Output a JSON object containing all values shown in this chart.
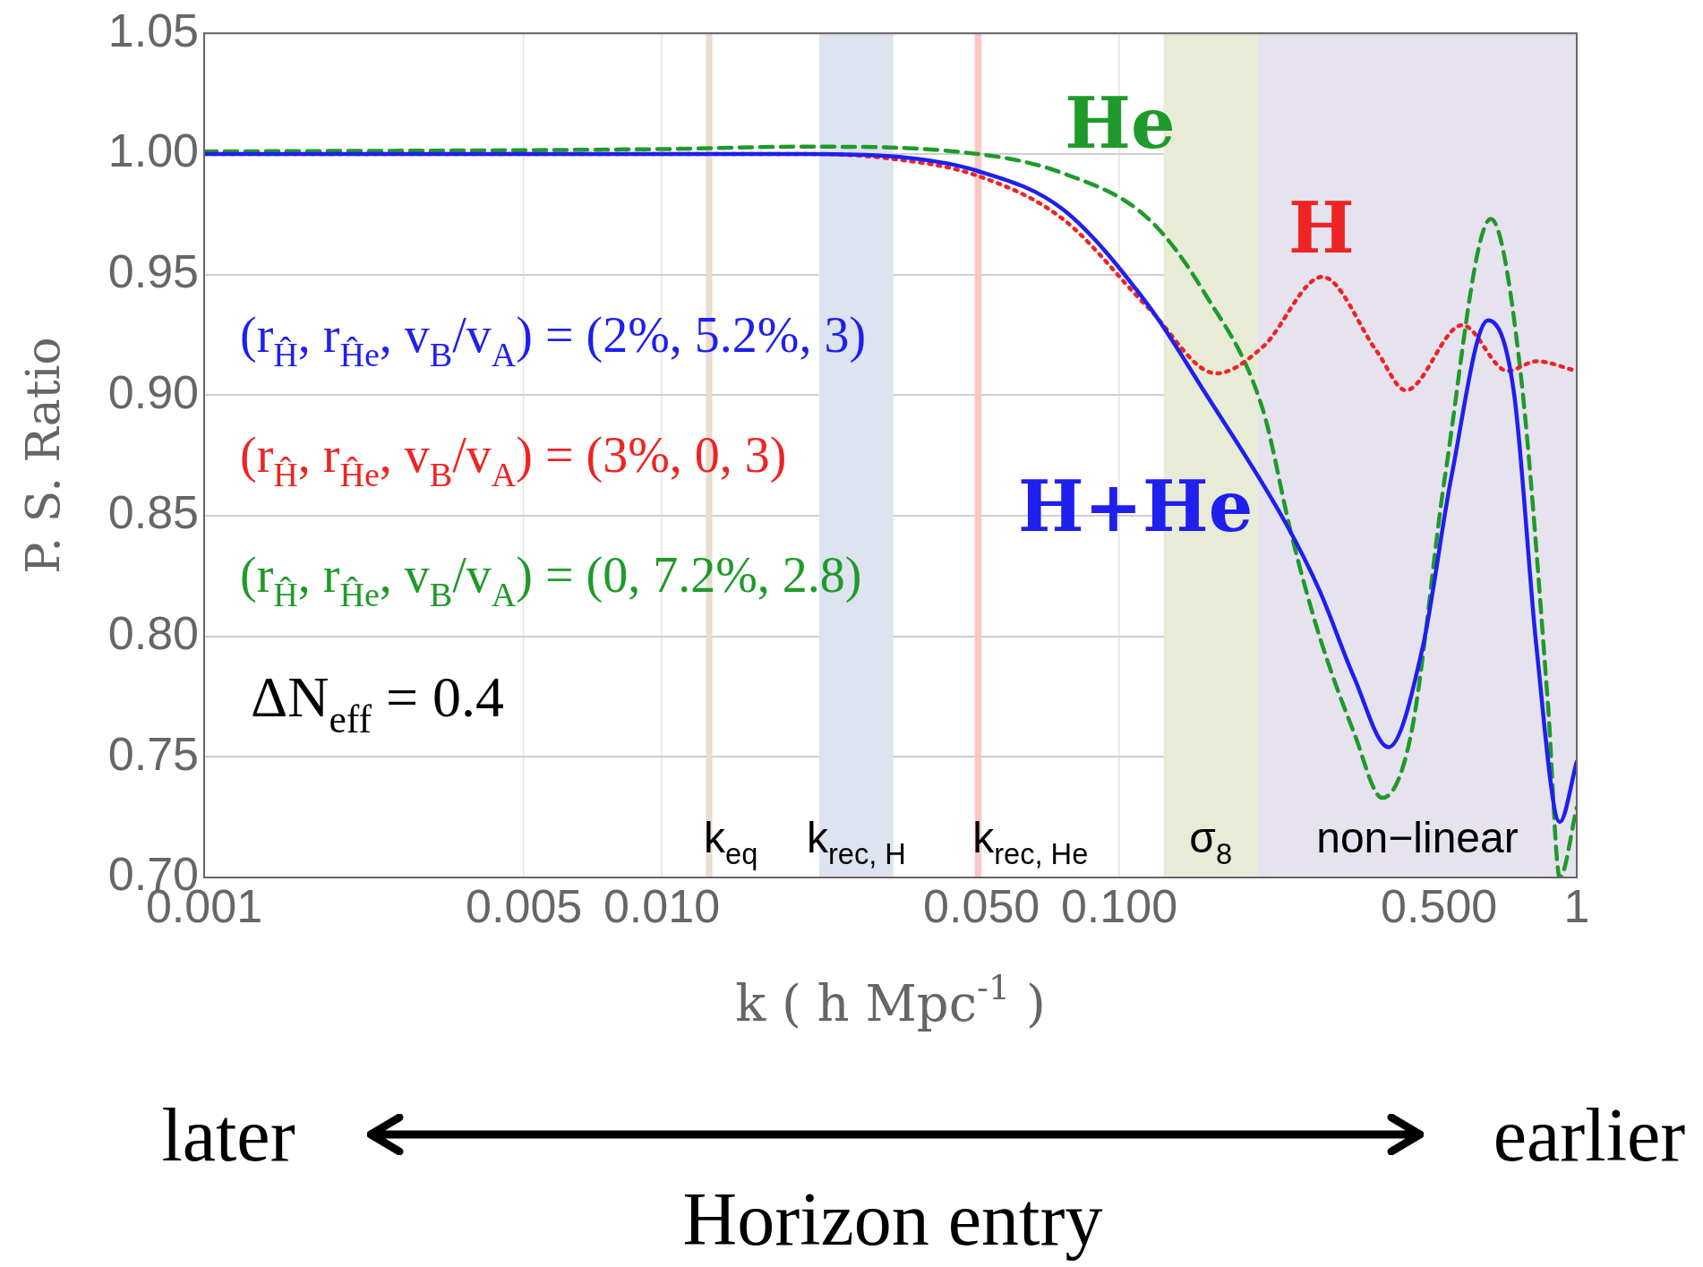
{
  "chart_data": {
    "type": "line",
    "xlabel": "k ( h Mpc$^{-1}$ )",
    "ylabel": "P. S. Ratio",
    "log": "x",
    "grid": true,
    "legend": false,
    "marker": "none",
    "xlim": [
      0.001,
      1
    ],
    "xticks": [
      0.001,
      {
        "value": 0.005,
        "label": "0.005"
      },
      {
        "value": 0.01,
        "label": "0.010"
      },
      {
        "value": 0.05,
        "label": "0.050"
      },
      {
        "value": 0.1,
        "label": "0.100"
      },
      {
        "value": 0.5,
        "label": "0.500"
      },
      1
    ],
    "ylim": [
      0.7,
      1.05
    ],
    "yticks": [
      {
        "value": 0.7,
        "label": "0.70"
      },
      {
        "value": 0.75,
        "label": "0.75"
      },
      {
        "value": 0.8,
        "label": "0.80"
      },
      {
        "value": 0.85,
        "label": "0.85"
      },
      {
        "value": 0.9,
        "label": "0.90"
      },
      {
        "value": 0.95,
        "label": "0.95"
      },
      {
        "value": 1,
        "label": "1.00"
      },
      {
        "value": 1.05,
        "label": "1.05"
      }
    ],
    "series": [
      {
        "name": "H+He",
        "color": "#1f1fee",
        "line_style": "solid",
        "x": [
          0.001,
          0.01,
          0.0207,
          0.0318,
          0.0489,
          0.0753,
          0.116,
          0.154,
          0.231,
          0.274,
          0.326,
          0.388,
          0.46,
          0.532,
          0.64,
          0.729,
          0.817,
          0.918,
          1
        ],
        "values": [
          1.0,
          1.0,
          1.0,
          0.999,
          0.993,
          0.977,
          0.937,
          0.901,
          0.847,
          0.819,
          0.783,
          0.754,
          0.795,
          0.866,
          0.931,
          0.901,
          0.795,
          0.723,
          0.748
        ]
      },
      {
        "name": "H",
        "color": "#ee2424",
        "line_style": "dotted",
        "x": [
          0.001,
          0.01,
          0.0207,
          0.0318,
          0.0489,
          0.0753,
          0.116,
          0.163,
          0.206,
          0.278,
          0.366,
          0.423,
          0.562,
          0.706,
          0.817,
          1
        ],
        "values": [
          1.0,
          1.0,
          1.0,
          0.998,
          0.991,
          0.973,
          0.936,
          0.909,
          0.92,
          0.949,
          0.918,
          0.902,
          0.929,
          0.91,
          0.914,
          0.91
        ]
      },
      {
        "name": "He",
        "color": "#1f9a2a",
        "line_style": "dashed",
        "x": [
          0.001,
          0.01,
          0.0207,
          0.0489,
          0.0753,
          0.116,
          0.154,
          0.206,
          0.238,
          0.274,
          0.326,
          0.376,
          0.435,
          0.515,
          0.649,
          0.75,
          0.865,
          0.918,
          1
        ],
        "values": [
          1.001,
          1.002,
          1.003,
          1.0,
          0.992,
          0.973,
          0.942,
          0.894,
          0.842,
          0.8,
          0.76,
          0.733,
          0.76,
          0.866,
          0.973,
          0.913,
          0.772,
          0.7,
          0.729
        ]
      }
    ],
    "ref_lines": [
      {
        "axis": "x",
        "value": 0.0127,
        "label": "k$_{eq}$",
        "color": "#e9dcd0"
      },
      {
        "axis": "x",
        "value": 0.0491,
        "label": "k$_{rec, He}$",
        "color": "#ffc4c4"
      }
    ],
    "bands": [
      {
        "axis": "x",
        "from": 0.0221,
        "to": 0.0321,
        "label": "k$_{rec, H}$",
        "color": "#dde3ef"
      },
      {
        "axis": "x",
        "from": 0.125,
        "to": 0.201,
        "label": "σ$_{8}$",
        "color": "#e8ecd6"
      },
      {
        "axis": "x",
        "from": 0.201,
        "to": 1,
        "label": "non−linear",
        "color": "#e6e2ee"
      }
    ],
    "annotations": [
      "(r$_{Ĥ}$, r$_{Ĥe}$, v$_{B}$/v$_{A}$) = (2%, 5.2%, 3)",
      "(r$_{Ĥ}$, r$_{Ĥe}$, v$_{B}$/v$_{A}$) = (3%, 0, 3)",
      "(r$_{Ĥ}$, r$_{Ĥe}$, v$_{B}$/v$_{A}$) = (0, 7.2%, 2.8)",
      "ΔN$_{eff}$ = 0.4",
      "later",
      "earlier",
      "Horizon entry"
    ]
  }
}
